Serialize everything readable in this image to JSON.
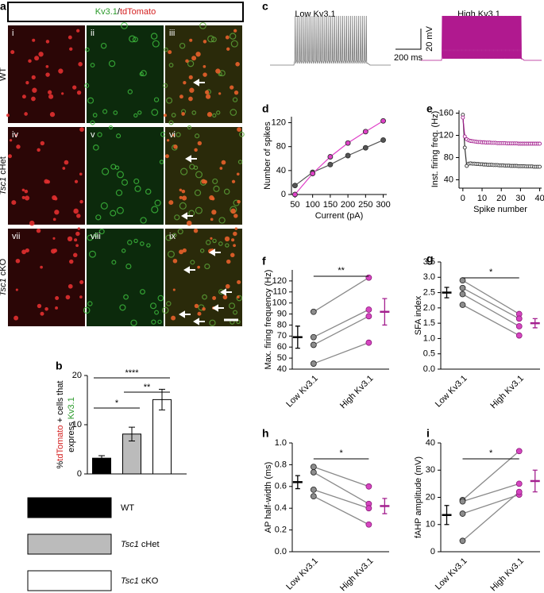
{
  "panel_a": {
    "panel": "a",
    "title": [
      {
        "text": "Kv3.1",
        "color": "#2a9a2a"
      },
      {
        "text": "/",
        "color": "#000000"
      },
      {
        "text": "tdTomato",
        "color": "#d42020"
      }
    ],
    "rows": [
      "WT",
      "Tsc1 cHet",
      "Tsc1 cKO"
    ],
    "tiles": [
      "i",
      "ii",
      "iii",
      "iv",
      "v",
      "vi",
      "vii",
      "viii",
      "ix"
    ]
  },
  "chart_data": [
    {
      "type": "bar",
      "panel": "b",
      "y_label": [
        [
          {
            "text": "%",
            "color": "#000000"
          },
          {
            "text": "tdTomato",
            "color": "#d42020"
          },
          {
            "text": " + cells that",
            "color": "#000000"
          }
        ],
        [
          {
            "text": "express ",
            "color": "#000000"
          },
          {
            "text": "Kv3.1",
            "color": "#2a9a2a"
          }
        ]
      ],
      "categories": [
        "WT",
        "Tsc1 cHet",
        "Tsc1 cKO"
      ],
      "values": [
        3.2,
        8.1,
        15.1
      ],
      "errors": [
        0.5,
        1.4,
        2.1
      ],
      "colors": [
        "#000000",
        "#bbbbbb",
        "#ffffff"
      ],
      "ylim": [
        0,
        20
      ],
      "yticks": [
        0,
        10,
        20
      ],
      "significance": [
        {
          "label": "*",
          "pair": [
            0,
            1
          ]
        },
        {
          "label": "****",
          "pair": [
            0,
            2
          ]
        },
        {
          "label": "**",
          "pair": [
            1,
            2
          ]
        }
      ]
    },
    {
      "type": "trace",
      "panel": "c",
      "series": [
        {
          "name": "Low Kv3.1",
          "color": "#777777"
        },
        {
          "name": "High Kv3.1",
          "color": "#b0198f"
        }
      ],
      "scalebar": [
        "200 ms",
        "20 mV"
      ]
    },
    {
      "type": "line",
      "panel": "d",
      "x_label": "Current (pA)",
      "y_label": "Number of spikes",
      "x": [
        50,
        100,
        150,
        200,
        250,
        300
      ],
      "series": [
        {
          "color": "#555555",
          "values": [
            15,
            37,
            50,
            65,
            78,
            91
          ]
        },
        {
          "color": "#e040c8",
          "values": [
            0,
            35,
            63,
            86,
            105,
            123
          ]
        }
      ],
      "xlim": [
        40,
        310
      ],
      "xticks": [
        50,
        100,
        150,
        200,
        250,
        300
      ],
      "ylim": [
        0,
        130
      ],
      "yticks": [
        0,
        40,
        80,
        120
      ]
    },
    {
      "type": "line",
      "panel": "e",
      "x_label": "Spike number",
      "y_label": "Inst. firing freq. (Hz)",
      "x": [
        0,
        1,
        2,
        3,
        4,
        5,
        6,
        7,
        8,
        9,
        10,
        11,
        12,
        13,
        14,
        15,
        16,
        17,
        18,
        19,
        20,
        21,
        22,
        23,
        24,
        25,
        26,
        27,
        28,
        29,
        30,
        31,
        32,
        33,
        34,
        35,
        36,
        37,
        38,
        39,
        40
      ],
      "series": [
        {
          "color": "#333333",
          "values": [
            157,
            98,
            65,
            69,
            69.5,
            69,
            69,
            68.5,
            68.5,
            68,
            68,
            67.5,
            67.5,
            67,
            67,
            67,
            66.5,
            66.5,
            66.5,
            66,
            66,
            66,
            65.5,
            65.5,
            65.5,
            65,
            65,
            65,
            65,
            64.5,
            64.5,
            64.5,
            64.5,
            64,
            64,
            64,
            64,
            63.5,
            63.5,
            63.5,
            63.5
          ]
        },
        {
          "color": "#a4208f",
          "values": [
            152,
            118,
            113,
            111,
            110,
            109.5,
            109,
            108.5,
            108,
            108,
            107.5,
            107.5,
            107,
            107,
            107,
            106.5,
            106.5,
            106.5,
            106,
            106,
            106,
            106,
            106,
            105.5,
            105.5,
            105.5,
            105.5,
            105.5,
            105.5,
            105,
            105,
            105,
            105,
            105,
            105,
            105,
            105,
            105,
            105,
            105,
            105
          ]
        }
      ],
      "xlim": [
        -2,
        41
      ],
      "xticks": [
        0,
        10,
        20,
        30,
        40
      ],
      "ylim": [
        25,
        165
      ],
      "yticks": [
        40,
        80,
        120,
        160
      ]
    },
    {
      "type": "paired",
      "panel": "f",
      "y_label": "Max. firing frequency (Hz)",
      "categories": [
        "Low Kv3.1",
        "High Kv3.1"
      ],
      "series": [
        {
          "values": [
            45,
            64
          ]
        },
        {
          "values": [
            62,
            88
          ]
        },
        {
          "values": [
            69,
            94
          ]
        },
        {
          "values": [
            92,
            123
          ]
        }
      ],
      "means": [
        69,
        92
      ],
      "errors": [
        10,
        12
      ],
      "mean_colors": [
        "#000000",
        "#a4208f"
      ],
      "point_colors": [
        "#8c8c8c",
        "#d546c0"
      ],
      "significance": "**",
      "ylim": [
        40,
        130
      ],
      "yticks": [
        40,
        50,
        60,
        70,
        80,
        90,
        100,
        110,
        120
      ]
    },
    {
      "type": "paired",
      "panel": "g",
      "y_label": "SFA index",
      "categories": [
        "Low Kv3.1",
        "High Kv3.1"
      ],
      "series": [
        {
          "values": [
            2.9,
            1.8
          ]
        },
        {
          "values": [
            2.65,
            1.65
          ]
        },
        {
          "values": [
            2.45,
            1.4
          ]
        },
        {
          "values": [
            2.1,
            1.1
          ]
        }
      ],
      "means": [
        2.5,
        1.5
      ],
      "errors": [
        0.17,
        0.15
      ],
      "mean_colors": [
        "#000000",
        "#a4208f"
      ],
      "point_colors": [
        "#8c8c8c",
        "#d546c0"
      ],
      "significance": "*",
      "ylim": [
        0,
        3.5
      ],
      "yticks": [
        {
          "value": 0,
          "label": "0.0"
        },
        0.5,
        {
          "value": 1,
          "label": "1.0"
        },
        1.5,
        {
          "value": 2,
          "label": "2.0"
        },
        2.5,
        {
          "value": 3,
          "label": "3.0"
        },
        3.5
      ]
    },
    {
      "type": "paired",
      "panel": "h",
      "y_label": "AP half-width (ms)",
      "categories": [
        "Low Kv3.1",
        "High Kv3.1"
      ],
      "series": [
        {
          "values": [
            0.78,
            0.6
          ]
        },
        {
          "values": [
            0.73,
            0.44
          ]
        },
        {
          "values": [
            0.57,
            0.4
          ]
        },
        {
          "values": [
            0.51,
            0.25
          ]
        }
      ],
      "means": [
        0.64,
        0.42
      ],
      "errors": [
        0.06,
        0.07
      ],
      "mean_colors": [
        "#000000",
        "#a4208f"
      ],
      "point_colors": [
        "#8c8c8c",
        "#d546c0"
      ],
      "significance": "*",
      "ylim": [
        0,
        1
      ],
      "yticks": [
        {
          "value": 0,
          "label": "0.0"
        },
        0.2,
        0.4,
        0.6,
        0.8,
        {
          "value": 1,
          "label": "1.0"
        }
      ]
    },
    {
      "type": "paired",
      "panel": "i",
      "y_label": "fAHP amplitude (mV)",
      "categories": [
        "Low Kv3.1",
        "High Kv3.1"
      ],
      "series": [
        {
          "values": [
            19,
            37
          ]
        },
        {
          "values": [
            18.5,
            25
          ]
        },
        {
          "values": [
            14,
            21
          ]
        },
        {
          "values": [
            4,
            22
          ]
        }
      ],
      "means": [
        13.5,
        26
      ],
      "errors": [
        3.5,
        4
      ],
      "mean_colors": [
        "#000000",
        "#a4208f"
      ],
      "point_colors": [
        "#8c8c8c",
        "#d546c0"
      ],
      "significance": "*",
      "ylim": [
        0,
        40
      ],
      "yticks": [
        0,
        10,
        20,
        30,
        40
      ]
    }
  ]
}
